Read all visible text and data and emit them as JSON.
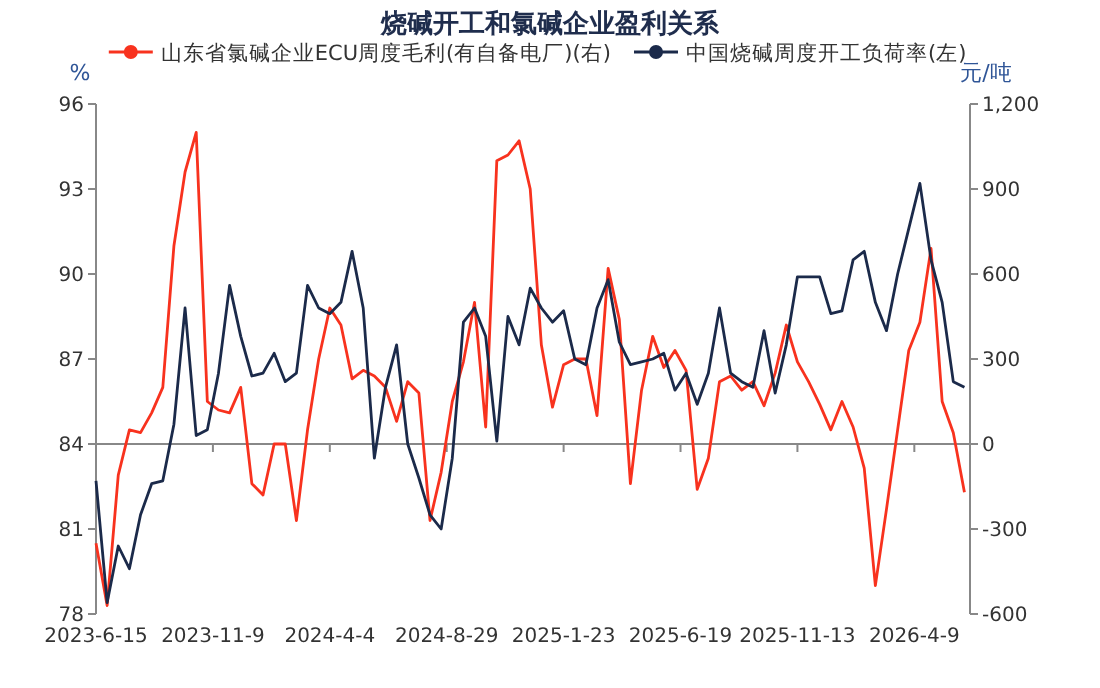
{
  "chart_data": {
    "type": "line",
    "title": "烧碱开工和氯碱企业盈利关系",
    "ylabel": "%",
    "y2label": "元/吨",
    "x": [
      "2023-06-15",
      "2023-06-29",
      "2023-07-13",
      "2023-07-27",
      "2023-08-10",
      "2023-08-24",
      "2023-09-07",
      "2023-09-21",
      "2023-10-05",
      "2023-10-19",
      "2023-11-02",
      "2023-11-16",
      "2023-11-30",
      "2023-12-14",
      "2023-12-28",
      "2024-01-11",
      "2024-01-25",
      "2024-02-08",
      "2024-02-22",
      "2024-03-07",
      "2024-03-21",
      "2024-04-04",
      "2024-04-18",
      "2024-05-02",
      "2024-05-16",
      "2024-05-30",
      "2024-06-13",
      "2024-06-27",
      "2024-07-11",
      "2024-07-25",
      "2024-08-08",
      "2024-08-22",
      "2024-09-05",
      "2024-09-19",
      "2024-10-03",
      "2024-10-17",
      "2024-10-31",
      "2024-11-14",
      "2024-11-28",
      "2024-12-12",
      "2024-12-26",
      "2025-01-09",
      "2025-01-23",
      "2025-02-06",
      "2025-02-20",
      "2025-03-06",
      "2025-03-20",
      "2025-04-03",
      "2025-04-17",
      "2025-05-01",
      "2025-05-15",
      "2025-05-29",
      "2025-06-12",
      "2025-06-26",
      "2025-07-10",
      "2025-07-24",
      "2025-08-07",
      "2025-08-21",
      "2025-09-04",
      "2025-09-18",
      "2025-10-02",
      "2025-10-16",
      "2025-10-30",
      "2025-11-13",
      "2025-11-27",
      "2025-12-11",
      "2025-12-25",
      "2026-01-08",
      "2026-01-22",
      "2026-02-05",
      "2026-02-19",
      "2026-03-05",
      "2026-03-19",
      "2026-04-02",
      "2026-04-16",
      "2026-04-30",
      "2026-05-14",
      "2026-05-28",
      "2026-06-11"
    ],
    "series": [
      {
        "name": "山东省氯碱企业ECU周度毛利(有自备电厂)(右)",
        "color": "#f8321e",
        "axis": "y2",
        "values": [
          -350,
          -570,
          -110,
          50,
          40,
          110,
          200,
          700,
          960,
          1100,
          150,
          120,
          110,
          200,
          -140,
          -180,
          0,
          0,
          -270,
          50,
          300,
          480,
          420,
          230,
          260,
          240,
          200,
          80,
          220,
          180,
          -270,
          -100,
          150,
          290,
          500,
          60,
          1000,
          1020,
          1070,
          900,
          350,
          130,
          280,
          300,
          300,
          100,
          620,
          440,
          -140,
          190,
          380,
          270,
          330,
          260,
          -160,
          -50,
          220,
          240,
          190,
          220,
          135,
          250,
          420,
          290,
          220,
          140,
          50,
          150,
          60,
          -85,
          -500,
          -230,
          50,
          330,
          430,
          690,
          150,
          40,
          -170
        ]
      },
      {
        "name": "中国烧碱周度开工负荷率(左)",
        "color": "#1b2a4a",
        "values": [
          82.7,
          78.4,
          80.4,
          79.6,
          81.5,
          82.6,
          82.7,
          84.7,
          88.8,
          84.3,
          84.5,
          86.5,
          89.6,
          87.8,
          86.4,
          86.5,
          87.2,
          86.2,
          86.5,
          89.6,
          88.8,
          88.6,
          89.0,
          90.8,
          88.8,
          83.5,
          86.0,
          87.5,
          84,
          82.8,
          81.5,
          81.0,
          83.5,
          88.3,
          88.8,
          87.8,
          84.1,
          88.5,
          87.5,
          89.5,
          88.8,
          88.3,
          88.7,
          87,
          86.8,
          88.8,
          89.8,
          87.6,
          86.8,
          86.9,
          87,
          87.2,
          85.9,
          86.5,
          85.4,
          86.5,
          88.8,
          86.5,
          86.2,
          86.0,
          88.0,
          85.8,
          87.5,
          89.9,
          89.9,
          89.9,
          88.6,
          88.7,
          90.5,
          90.8,
          89,
          88.0,
          90.0,
          91.6,
          93.2,
          90.5,
          89,
          86.2,
          86.0
        ]
      }
    ],
    "xlim": [
      "2023-06-15",
      "2026-06-18"
    ],
    "xticks": [
      {
        "value": "2023-06-15",
        "label": "2023-6-15"
      },
      {
        "value": "2023-11-09",
        "label": "2023-11-9"
      },
      {
        "value": "2024-04-04",
        "label": "2024-4-4"
      },
      {
        "value": "2024-08-29",
        "label": "2024-8-29"
      },
      {
        "value": "2025-01-23",
        "label": "2025-1-23"
      },
      {
        "value": "2025-06-19",
        "label": "2025-6-19"
      },
      {
        "value": "2025-11-13",
        "label": "2025-11-13"
      },
      {
        "value": "2026-04-09",
        "label": "2026-4-9"
      }
    ],
    "ylim": [
      78,
      96
    ],
    "yticks": [
      78,
      81,
      84,
      87,
      90,
      93,
      96
    ],
    "y2lim": [
      -600,
      1200
    ],
    "y2ticks": [
      -600,
      -300,
      0,
      300,
      600,
      900,
      {
        "value": 1200,
        "label": "1,200"
      }
    ],
    "legend": "top",
    "marker": "none",
    "line_style": "solid"
  }
}
